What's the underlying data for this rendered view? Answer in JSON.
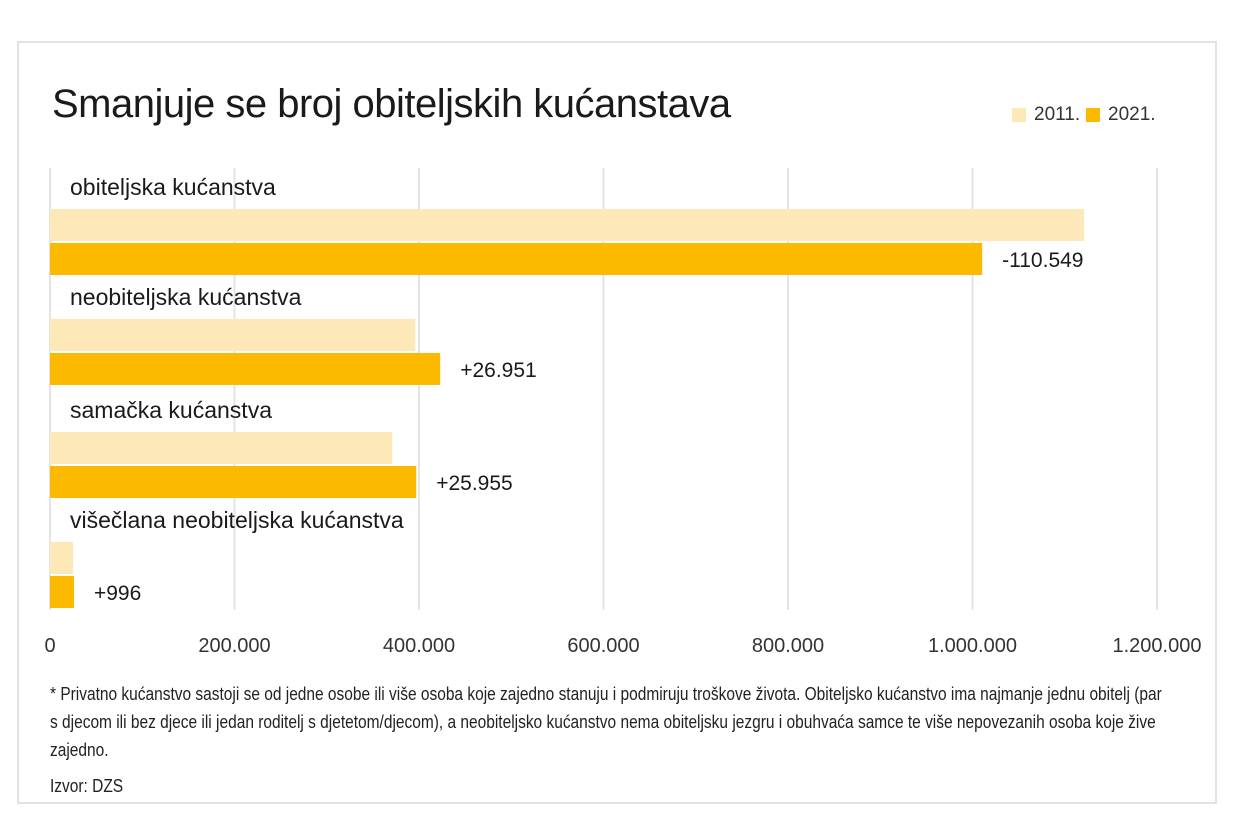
{
  "title": "Smanjuje se broj obiteljskih kućanstava",
  "legend": [
    {
      "label": "2011.",
      "color": "#fde9b8"
    },
    {
      "label": "2021.",
      "color": "#fbb900"
    }
  ],
  "chart_data": {
    "type": "bar",
    "orientation": "horizontal",
    "title": "Smanjuje se broj obiteljskih kućanstava",
    "categories": [
      "obiteljska kućanstva",
      "neobiteljska kućanstva",
      "samačka kućanstva",
      "višečlana neobiteljska kućanstva"
    ],
    "series": [
      {
        "name": "2011.",
        "color": "#fde9b8",
        "values": [
          1121000,
          396000,
          371000,
          25000
        ]
      },
      {
        "name": "2021.",
        "color": "#fbb900",
        "values": [
          1010451,
          423000,
          397000,
          26000
        ]
      }
    ],
    "change_labels": [
      "-110.549",
      "+26.951",
      "+25.955",
      "+996"
    ],
    "xlim": [
      0,
      1200000
    ],
    "ticks": [
      0,
      200000,
      400000,
      600000,
      800000,
      1000000,
      1200000
    ],
    "tick_labels": [
      "0",
      "200.000",
      "400.000",
      "600.000",
      "800.000",
      "1.000.000",
      "1.200.000"
    ],
    "grid": true,
    "legend_position": "top-right"
  },
  "note": "* Privatno kućanstvo sastoji se od jedne osobe ili više osoba koje zajedno stanuju i podmiruju troškove života. Obiteljsko kućanstvo ima najmanje jednu obitelj (par s djecom ili bez djece ili jedan roditelj s djetetom/djecom), a neobiteljsko kućanstvo nema obiteljsku jezgru i obuhvaća samce te više nepovezanih osoba koje žive zajedno.",
  "source": "Izvor: DZS"
}
